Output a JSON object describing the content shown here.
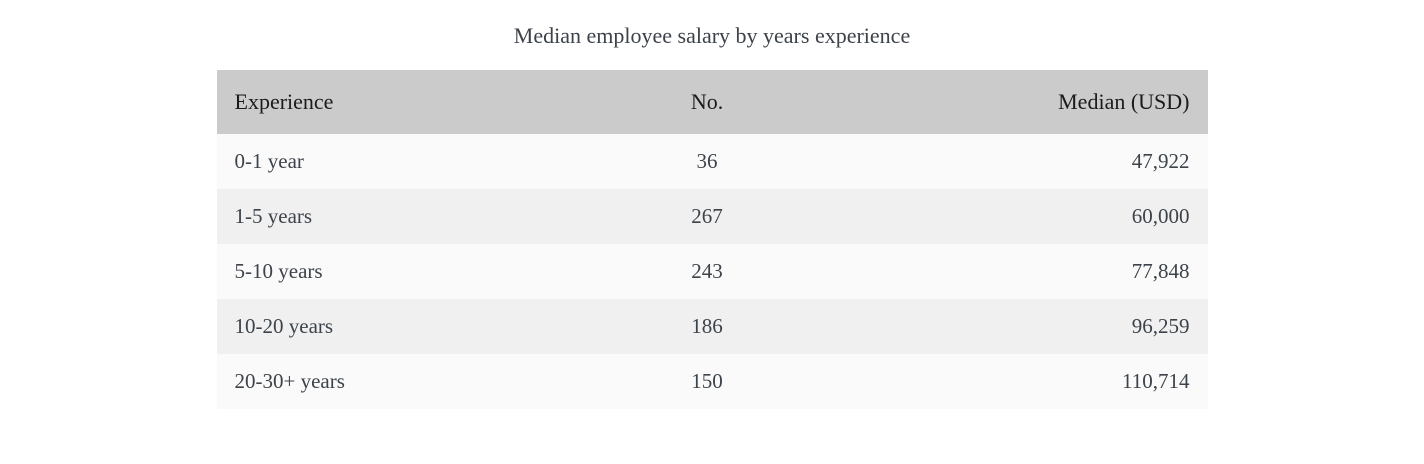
{
  "chart_data": {
    "type": "table",
    "title": "Median employee salary by years experience",
    "columns": [
      "Experience",
      "No.",
      "Median (USD)"
    ],
    "column_alignments": [
      "left",
      "center",
      "right"
    ],
    "rows": [
      {
        "experience": "0-1 year",
        "no": "36",
        "median_usd": "47,922"
      },
      {
        "experience": "1-5 years",
        "no": "267",
        "median_usd": "60,000"
      },
      {
        "experience": "5-10 years",
        "no": "243",
        "median_usd": "77,848"
      },
      {
        "experience": "10-20 years",
        "no": "186",
        "median_usd": "96,259"
      },
      {
        "experience": "20-30+ years",
        "no": "150",
        "median_usd": "110,714"
      }
    ]
  },
  "colors": {
    "page_bg": "#ffffff",
    "header_bg": "#cbcbcb",
    "row_odd_bg": "#fafafa",
    "row_even_bg": "#f0f0f0",
    "header_text": "#1b1b1b",
    "body_text": "#3d434a",
    "title_text": "#3d434a"
  }
}
